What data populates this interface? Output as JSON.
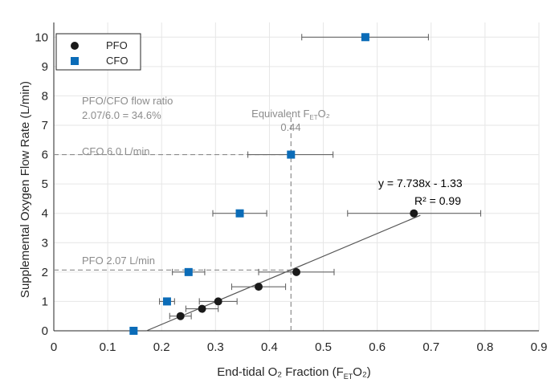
{
  "chart_data": {
    "type": "scatter",
    "xlabel": "End-tidal O₂ Fraction (F",
    "xlabel_sub": "ET",
    "xlabel_end": "O₂)",
    "ylabel": "Supplemental Oxygen Flow Rate (L/min)",
    "xlim": [
      0,
      0.9
    ],
    "ylim": [
      0,
      10.5
    ],
    "x_ticks": [
      0,
      0.1,
      0.2,
      0.3,
      0.4,
      0.5,
      0.6,
      0.7,
      0.8,
      0.9
    ],
    "x_tick_labels": [
      "0",
      "0.1",
      "0.2",
      "0.3",
      "0.4",
      "0.5",
      "0.6",
      "0.7",
      "0.8",
      "0.9"
    ],
    "y_ticks": [
      0,
      1,
      2,
      3,
      4,
      5,
      6,
      7,
      8,
      9,
      10
    ],
    "y_tick_labels": [
      "0",
      "1",
      "2",
      "3",
      "4",
      "5",
      "6",
      "7",
      "8",
      "9",
      "10"
    ],
    "grid": true,
    "legend_position": "top-left",
    "series": [
      {
        "name": "PFO",
        "marker": "circle",
        "color": "#1a1a1a",
        "points": [
          {
            "x": 0.235,
            "y": 0.5,
            "xerr_low": 0.215,
            "xerr_high": 0.255
          },
          {
            "x": 0.275,
            "y": 0.75,
            "xerr_low": 0.245,
            "xerr_high": 0.305
          },
          {
            "x": 0.305,
            "y": 1.0,
            "xerr_low": 0.27,
            "xerr_high": 0.34
          },
          {
            "x": 0.38,
            "y": 1.5,
            "xerr_low": 0.33,
            "xerr_high": 0.43
          },
          {
            "x": 0.45,
            "y": 2.0,
            "xerr_low": 0.38,
            "xerr_high": 0.52
          },
          {
            "x": 0.668,
            "y": 4.0,
            "xerr_low": 0.545,
            "xerr_high": 0.792
          }
        ]
      },
      {
        "name": "CFO",
        "marker": "square",
        "color": "#0b6cb8",
        "points": [
          {
            "x": 0.148,
            "y": 0.0,
            "xerr_low": 0.143,
            "xerr_high": 0.153
          },
          {
            "x": 0.21,
            "y": 1.0,
            "xerr_low": 0.196,
            "xerr_high": 0.224
          },
          {
            "x": 0.25,
            "y": 2.0,
            "xerr_low": 0.22,
            "xerr_high": 0.28
          },
          {
            "x": 0.345,
            "y": 4.0,
            "xerr_low": 0.295,
            "xerr_high": 0.395
          },
          {
            "x": 0.44,
            "y": 6.0,
            "xerr_low": 0.36,
            "xerr_high": 0.518
          },
          {
            "x": 0.578,
            "y": 10.0,
            "xerr_low": 0.46,
            "xerr_high": 0.695
          }
        ]
      }
    ],
    "fit_line": {
      "slope": 7.738,
      "intercept": -1.33,
      "x_start": 0.1719,
      "x_end": 0.68,
      "equation_text": "y = 7.738x - 1.33",
      "r2_text": "R² = 0.99",
      "color": "#555555"
    },
    "reference_lines": [
      {
        "orientation": "horizontal",
        "y": 6.0,
        "x_end": 0.44
      },
      {
        "orientation": "horizontal",
        "y": 2.07,
        "x_end": 0.44
      },
      {
        "orientation": "vertical",
        "x": 0.44,
        "y_end": 7.3
      }
    ],
    "annotations": {
      "ratio_line1": "PFO/CFO flow ratio",
      "ratio_line2": "2.07/6.0 = 34.6%",
      "cfo_flow": "CFO 6.0 L/min",
      "pfo_flow": "PFO 2.07 L/min",
      "equivalent_label_main": "Equivalent F",
      "equivalent_label_sub": "ET",
      "equivalent_label_end": "O₂",
      "equivalent_value": "0.44"
    },
    "colors": {
      "annotation_gray": "#8c8c8c",
      "grid": "#e6e6e6",
      "axis": "#262626",
      "errorbar": "#666666"
    }
  }
}
